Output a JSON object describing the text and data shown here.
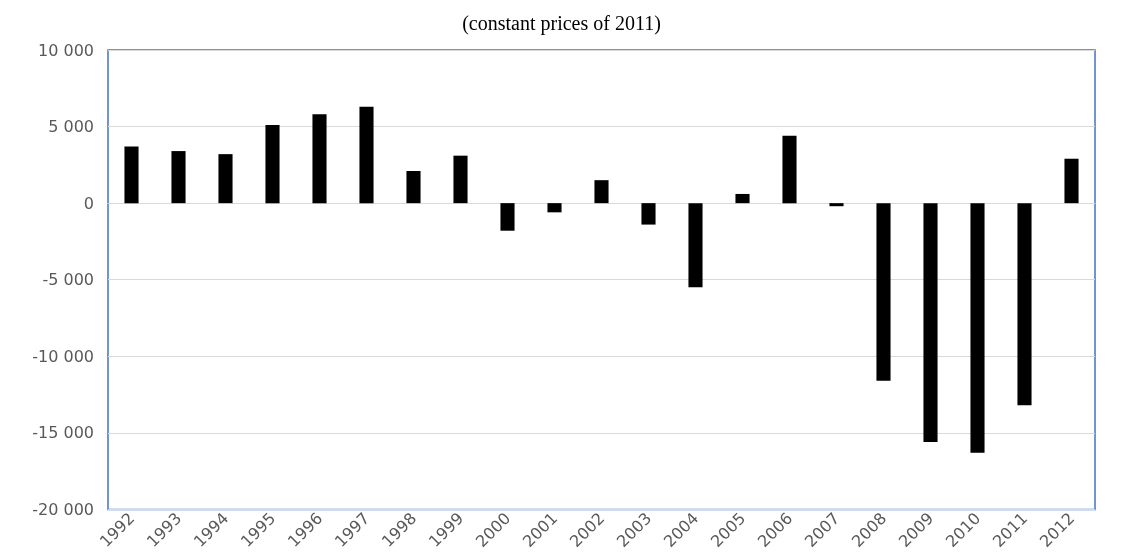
{
  "chart_data": {
    "type": "bar",
    "title": "(constant prices of 2011)",
    "categories": [
      "1992",
      "1993",
      "1994",
      "1995",
      "1996",
      "1997",
      "1998",
      "1999",
      "2000",
      "2001",
      "2002",
      "2003",
      "2004",
      "2005",
      "2006",
      "2007",
      "2008",
      "2009",
      "2010",
      "2011",
      "2012"
    ],
    "values": [
      3700,
      3400,
      3200,
      5100,
      5800,
      6300,
      2100,
      3100,
      -1800,
      -600,
      1500,
      -1400,
      -5500,
      600,
      4400,
      -200,
      -11600,
      -15600,
      -16300,
      -13200,
      2900
    ],
    "color": "#000000",
    "ylim": [
      -20000,
      10000
    ],
    "yticks": [
      {
        "value": -20000,
        "label": "-20 000"
      },
      {
        "value": -15000,
        "label": "-15 000"
      },
      {
        "value": -10000,
        "label": "-10 000"
      },
      {
        "value": -5000,
        "label": "-5 000"
      },
      {
        "value": 0,
        "label": "0"
      },
      {
        "value": 5000,
        "label": "5 000"
      },
      {
        "value": 10000,
        "label": "10 000"
      }
    ],
    "grid": "y"
  }
}
